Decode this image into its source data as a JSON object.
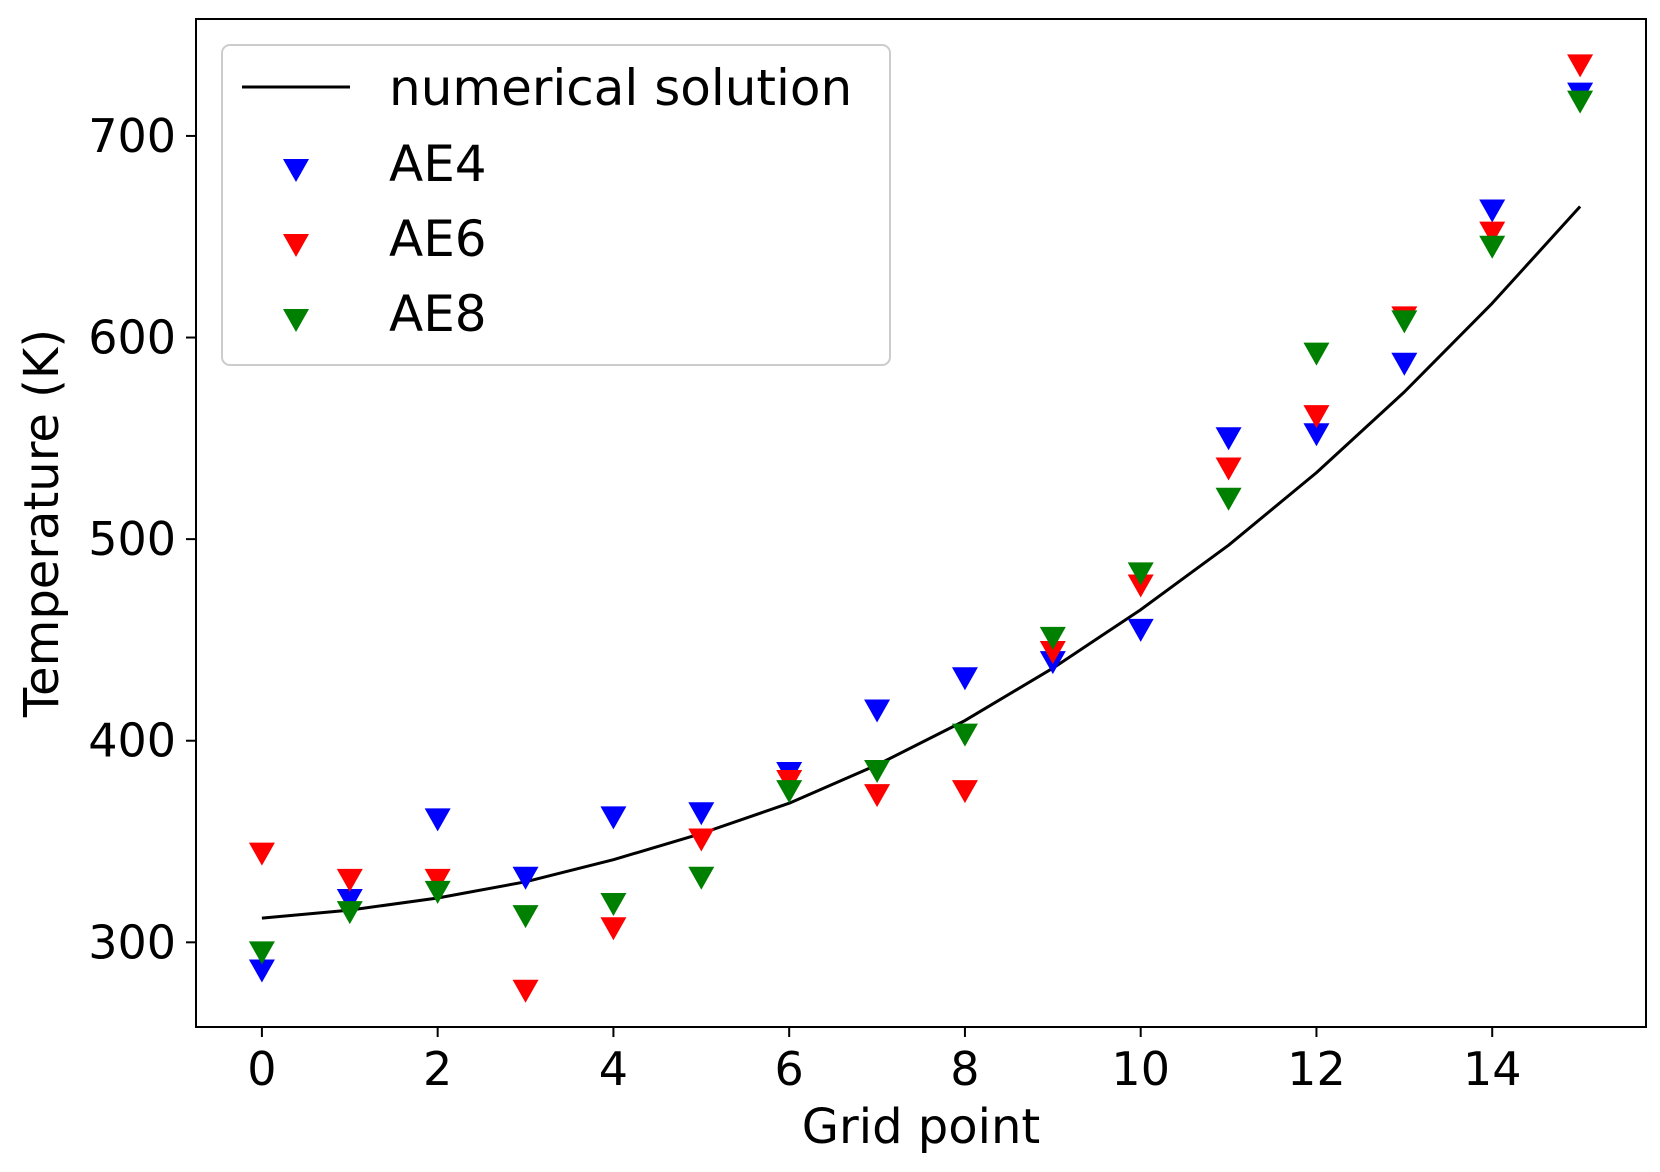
{
  "chart_data": {
    "type": "scatter",
    "title": "",
    "xlabel": "Grid point",
    "ylabel": "Temperature (K)",
    "xlim": [
      -0.75,
      15.75
    ],
    "ylim": [
      258,
      758
    ],
    "grid": false,
    "legend_position": "top-left",
    "x_ticks": [
      0,
      2,
      4,
      6,
      8,
      10,
      12,
      14
    ],
    "y_ticks": [
      300,
      400,
      500,
      600,
      700
    ],
    "x_tick_labels": [
      "0",
      "2",
      "4",
      "6",
      "8",
      "10",
      "12",
      "14"
    ],
    "y_tick_labels": [
      "300",
      "400",
      "500",
      "600",
      "700"
    ],
    "line": {
      "name": "numerical solution",
      "color": "#000000",
      "x": [
        0,
        1,
        2,
        3,
        4,
        5,
        6,
        7,
        8,
        9,
        10,
        11,
        12,
        13,
        14,
        15
      ],
      "y": [
        312,
        316,
        322,
        330,
        341,
        354,
        369,
        388,
        410,
        436,
        465,
        497,
        533,
        573,
        617,
        665
      ]
    },
    "series": [
      {
        "name": "AE4",
        "color": "#0000ff",
        "marker": "triangle-down",
        "x": [
          0,
          1,
          2,
          3,
          4,
          5,
          6,
          7,
          8,
          9,
          10,
          11,
          12,
          13,
          14,
          15
        ],
        "y": [
          287,
          322,
          362,
          333,
          363,
          365,
          385,
          416,
          432,
          440,
          456,
          551,
          553,
          588,
          664,
          722
        ]
      },
      {
        "name": "AE6",
        "color": "#ff0000",
        "marker": "triangle-down",
        "x": [
          0,
          1,
          2,
          3,
          4,
          5,
          6,
          7,
          8,
          9,
          10,
          11,
          12,
          13,
          14,
          15
        ],
        "y": [
          345,
          332,
          332,
          277,
          308,
          352,
          381,
          374,
          376,
          445,
          478,
          536,
          562,
          611,
          653,
          736
        ]
      },
      {
        "name": "AE8",
        "color": "#008000",
        "marker": "triangle-down",
        "x": [
          0,
          1,
          2,
          3,
          4,
          5,
          6,
          7,
          8,
          9,
          10,
          11,
          12,
          13,
          14,
          15
        ],
        "y": [
          296,
          316,
          326,
          314,
          320,
          333,
          376,
          386,
          404,
          452,
          484,
          521,
          593,
          609,
          646,
          718
        ]
      }
    ]
  }
}
